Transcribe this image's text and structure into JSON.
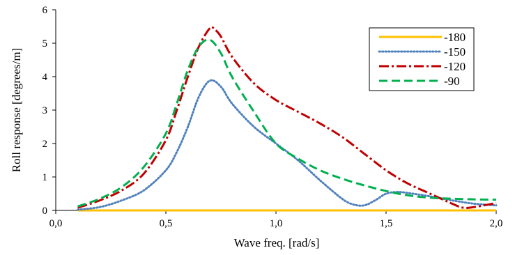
{
  "chart_data": {
    "type": "line",
    "xlabel": "Wave freq. [rad/s]",
    "ylabel": "Roll response [degrees/m]",
    "xlim": [
      0.0,
      2.0
    ],
    "ylim": [
      0,
      6
    ],
    "xticks": [
      "0,0",
      "0,5",
      "1,0",
      "1,5",
      "2,0"
    ],
    "yticks": [
      "0",
      "1",
      "2",
      "3",
      "4",
      "5",
      "6"
    ],
    "grid": false,
    "legend_position": "top-right",
    "series": [
      {
        "name": "-180",
        "color": "#ffc000",
        "style": "solid",
        "x": [
          0.1,
          2.0
        ],
        "y": [
          0.0,
          0.0
        ]
      },
      {
        "name": "-150",
        "color": "#4f81bd",
        "style": "dotted",
        "x": [
          0.1,
          0.2,
          0.3,
          0.4,
          0.5,
          0.55,
          0.6,
          0.65,
          0.7,
          0.75,
          0.8,
          0.9,
          1.0,
          1.1,
          1.2,
          1.3,
          1.35,
          1.4,
          1.45,
          1.5,
          1.55,
          1.6,
          1.7,
          1.8,
          1.9,
          2.0
        ],
        "y": [
          0.02,
          0.1,
          0.3,
          0.6,
          1.2,
          1.75,
          2.5,
          3.4,
          3.88,
          3.7,
          3.2,
          2.5,
          2.0,
          1.5,
          0.9,
          0.35,
          0.18,
          0.15,
          0.3,
          0.5,
          0.55,
          0.52,
          0.42,
          0.3,
          0.2,
          0.15
        ]
      },
      {
        "name": "-120",
        "color": "#c00000",
        "style": "dashdot",
        "x": [
          0.1,
          0.2,
          0.3,
          0.4,
          0.5,
          0.55,
          0.6,
          0.65,
          0.7,
          0.72,
          0.75,
          0.8,
          0.9,
          1.0,
          1.1,
          1.2,
          1.3,
          1.4,
          1.5,
          1.6,
          1.7,
          1.8,
          1.85,
          1.9,
          2.0
        ],
        "y": [
          0.08,
          0.3,
          0.6,
          1.1,
          2.1,
          3.0,
          4.0,
          4.9,
          5.45,
          5.42,
          5.2,
          4.6,
          3.8,
          3.3,
          2.95,
          2.6,
          2.2,
          1.7,
          1.2,
          0.8,
          0.5,
          0.2,
          0.08,
          0.1,
          0.22
        ]
      },
      {
        "name": "-90",
        "color": "#00b050",
        "style": "dashed",
        "x": [
          0.1,
          0.2,
          0.3,
          0.4,
          0.5,
          0.55,
          0.6,
          0.65,
          0.7,
          0.75,
          0.8,
          0.9,
          1.0,
          1.1,
          1.2,
          1.3,
          1.4,
          1.5,
          1.6,
          1.7,
          1.8,
          1.9,
          2.0
        ],
        "y": [
          0.12,
          0.35,
          0.7,
          1.3,
          2.3,
          3.2,
          4.2,
          4.9,
          5.1,
          4.7,
          4.0,
          2.95,
          2.0,
          1.55,
          1.2,
          0.95,
          0.75,
          0.58,
          0.45,
          0.38,
          0.35,
          0.33,
          0.32
        ]
      }
    ]
  }
}
